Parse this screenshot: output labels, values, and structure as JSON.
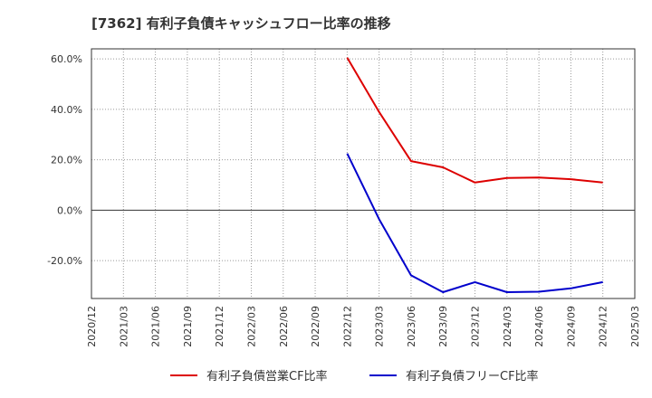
{
  "chart_data": {
    "type": "line",
    "title": "[7362]  有利子負債キャッシュフロー比率の推移",
    "xlabel": "",
    "ylabel": "",
    "ylim": [
      -35,
      64
    ],
    "yticks": [
      60,
      40,
      20,
      0,
      -20
    ],
    "ytick_labels": [
      "60.0%",
      "40.0%",
      "20.0%",
      "0.0%",
      "-20.0%"
    ],
    "x_ticks": [
      "2020/12",
      "2021/03",
      "2021/06",
      "2021/09",
      "2021/12",
      "2022/03",
      "2022/06",
      "2022/09",
      "2022/12",
      "2023/03",
      "2023/06",
      "2023/09",
      "2023/12",
      "2024/03",
      "2024/06",
      "2024/09",
      "2024/12",
      "2025/03"
    ],
    "grid": true,
    "legend_position": "bottom",
    "series": [
      {
        "name": "有利子負債営業CF比率",
        "color": "#dd0000",
        "x": [
          "2022/12",
          "2023/03",
          "2023/06",
          "2023/09",
          "2023/12",
          "2024/03",
          "2024/06",
          "2024/09",
          "2024/12"
        ],
        "values": [
          60.5,
          39.0,
          19.5,
          17.0,
          11.0,
          12.8,
          13.0,
          12.3,
          11.0
        ]
      },
      {
        "name": "有利子負債フリーCF比率",
        "color": "#0000cc",
        "x": [
          "2022/12",
          "2023/03",
          "2023/06",
          "2023/09",
          "2023/12",
          "2024/03",
          "2024/06",
          "2024/09",
          "2024/12"
        ],
        "values": [
          22.5,
          -3.5,
          -25.8,
          -32.5,
          -28.5,
          -32.5,
          -32.3,
          -31.0,
          -28.5
        ]
      }
    ]
  }
}
